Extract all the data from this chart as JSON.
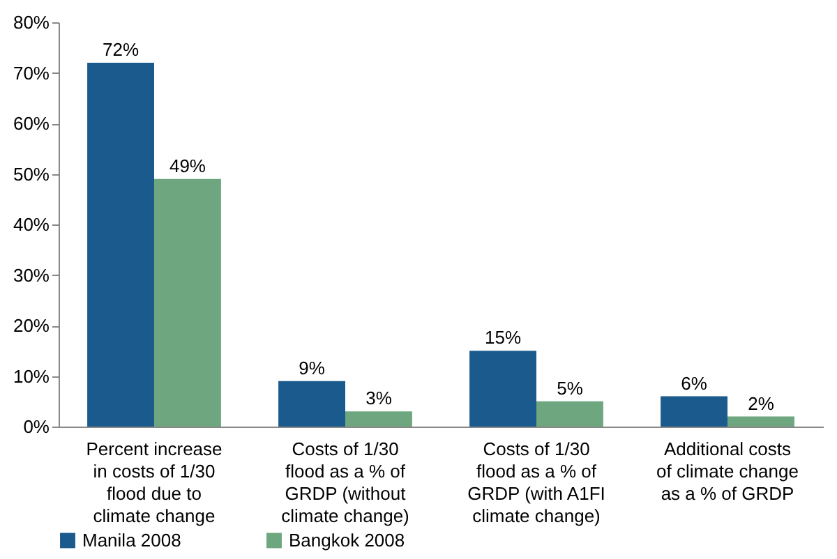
{
  "chart_data": {
    "type": "bar",
    "categories": [
      "Percent increase in costs of 1/30 flood due to climate change",
      "Costs of 1/30 flood as a % of GRDP (without climate change)",
      "Costs of 1/30 flood as a % of GRDP (with A1FI climate change)",
      "Additional costs of climate change as a % of GRDP"
    ],
    "series": [
      {
        "name": "Manila 2008",
        "color": "#1b5a8c",
        "values": [
          72,
          9,
          15,
          6
        ],
        "value_labels": [
          "72%",
          "9%",
          "15%",
          "6%"
        ]
      },
      {
        "name": "Bangkok 2008",
        "color": "#6da67f",
        "values": [
          49,
          3,
          5,
          2
        ],
        "value_labels": [
          "49%",
          "3%",
          "5%",
          "2%"
        ]
      }
    ],
    "ylim": [
      0,
      80
    ],
    "yticks": [
      {
        "value": 0,
        "label": "0%"
      },
      {
        "value": 10,
        "label": "10%"
      },
      {
        "value": 20,
        "label": "20%"
      },
      {
        "value": 30,
        "label": "30%"
      },
      {
        "value": 40,
        "label": "40%"
      },
      {
        "value": 50,
        "label": "50%"
      },
      {
        "value": 60,
        "label": "60%"
      },
      {
        "value": 70,
        "label": "70%"
      },
      {
        "value": 80,
        "label": "80%"
      }
    ],
    "grid": false,
    "legend": "bottom"
  }
}
